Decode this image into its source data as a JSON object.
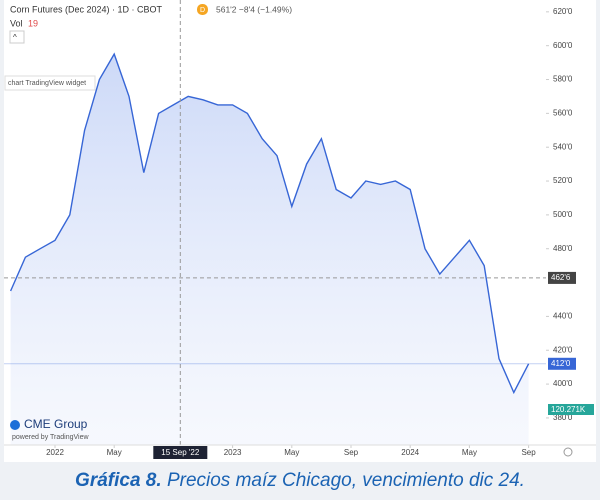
{
  "chart_data": {
    "type": "area-line",
    "title": "Corn Futures (Dec 2024) · 1D · CBOT",
    "interval_badge": "D",
    "quote": "561'2 −8'4 (−1.49%)",
    "volume_label": "Vol",
    "volume_value": "19",
    "widget_label": "chart TradingView widget",
    "brand": "CME Group",
    "powered_by": "powered by TradingView",
    "last_volume_label": "120.271K",
    "color": "#3766d6",
    "grid": false,
    "x": [
      "2021-10",
      "2021-11",
      "2021-12",
      "2022-01",
      "2022-02",
      "2022-03",
      "2022-04",
      "2022-05",
      "2022-06",
      "2022-07",
      "2022-08",
      "2022-09",
      "2022-10",
      "2022-11",
      "2022-12",
      "2023-01",
      "2023-02",
      "2023-03",
      "2023-04",
      "2023-05",
      "2023-06",
      "2023-07",
      "2023-08",
      "2023-09",
      "2023-10",
      "2023-11",
      "2023-12",
      "2024-01",
      "2024-02",
      "2024-03",
      "2024-04",
      "2024-05",
      "2024-06",
      "2024-07",
      "2024-08",
      "2024-09"
    ],
    "values": [
      455,
      475,
      480,
      485,
      500,
      550,
      580,
      595,
      570,
      525,
      560,
      565,
      570,
      568,
      565,
      565,
      560,
      545,
      535,
      505,
      530,
      545,
      515,
      510,
      520,
      518,
      520,
      515,
      480,
      465,
      475,
      485,
      470,
      415,
      395,
      412
    ],
    "ylim": [
      364,
      627
    ],
    "yticks": [
      {
        "value": 380,
        "label": "380'0"
      },
      {
        "value": 400,
        "label": "400'0"
      },
      {
        "value": 420,
        "label": "420'0"
      },
      {
        "value": 440,
        "label": "440'0"
      },
      {
        "value": 480,
        "label": "480'0"
      },
      {
        "value": 500,
        "label": "500'0"
      },
      {
        "value": 520,
        "label": "520'0"
      },
      {
        "value": 540,
        "label": "540'0"
      },
      {
        "value": 560,
        "label": "560'0"
      },
      {
        "value": 580,
        "label": "580'0"
      },
      {
        "value": 600,
        "label": "600'0"
      },
      {
        "value": 620,
        "label": "620'0"
      }
    ],
    "xticks": [
      {
        "value": "2022-01",
        "label": "2022"
      },
      {
        "value": "2022-05",
        "label": "May"
      },
      {
        "value": "2023-01",
        "label": "2023"
      },
      {
        "value": "2023-05",
        "label": "May"
      },
      {
        "value": "2023-09",
        "label": "Sep"
      },
      {
        "value": "2024-01",
        "label": "2024"
      },
      {
        "value": "2024-05",
        "label": "May"
      },
      {
        "value": "2024-09",
        "label": "Sep"
      }
    ],
    "crosshair_x": {
      "value": "2022-09-15",
      "label": "15 Sep '22"
    },
    "crosshair_price": {
      "value": 462.75,
      "label": "462'6"
    },
    "last_price": {
      "value": 412,
      "label": "412'0"
    }
  },
  "caption": {
    "number": "Gráfica 8.",
    "text": "Precios maíz Chicago, vencimiento dic 24."
  }
}
